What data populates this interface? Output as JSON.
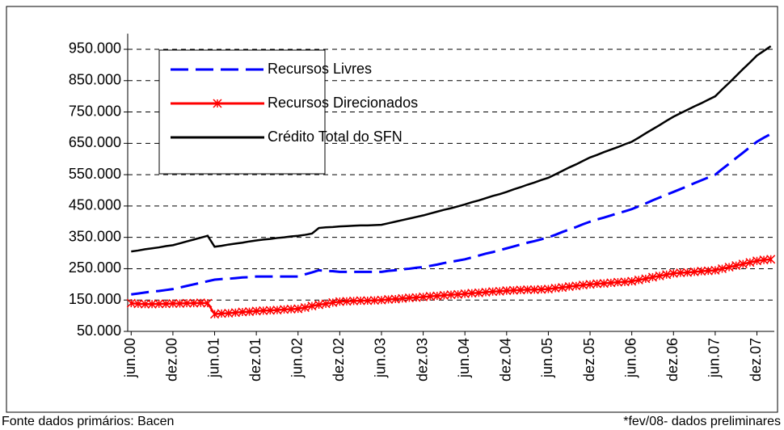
{
  "chart_data": {
    "type": "line",
    "categories": [
      "jun.00",
      null,
      null,
      null,
      null,
      null,
      "dez.00",
      null,
      null,
      null,
      null,
      null,
      "jun.01",
      null,
      null,
      null,
      null,
      null,
      "dez.01",
      null,
      null,
      null,
      null,
      null,
      "jun.02",
      null,
      null,
      null,
      null,
      null,
      "dez.02",
      null,
      null,
      null,
      null,
      null,
      "jun.03",
      null,
      null,
      null,
      null,
      null,
      "dez.03",
      null,
      null,
      null,
      null,
      null,
      "jun.04",
      null,
      null,
      null,
      null,
      null,
      "dez.04",
      null,
      null,
      null,
      null,
      null,
      "jun.05",
      null,
      null,
      null,
      null,
      null,
      "dez.05",
      null,
      null,
      null,
      null,
      null,
      "jun.06",
      null,
      null,
      null,
      null,
      null,
      "dez.06",
      null,
      null,
      null,
      null,
      null,
      "jun.07",
      null,
      null,
      null,
      null,
      null,
      "dez.07",
      null,
      null
    ],
    "series": [
      {
        "name": "Recursos Livres",
        "color": "#0000ff",
        "style": "dashed",
        "values": [
          168000,
          171000,
          174000,
          177000,
          179000,
          182000,
          185000,
          190000,
          195000,
          200000,
          205000,
          210000,
          215000,
          217000,
          218000,
          220000,
          222000,
          223000,
          225000,
          225000,
          225000,
          225000,
          225000,
          225000,
          225000,
          232000,
          238000,
          245000,
          243000,
          242000,
          240000,
          240000,
          240000,
          240000,
          240000,
          240000,
          240000,
          243000,
          245000,
          248000,
          250000,
          253000,
          255000,
          259000,
          263000,
          268000,
          272000,
          276000,
          280000,
          286000,
          292000,
          298000,
          303000,
          309000,
          315000,
          321000,
          327000,
          333000,
          338000,
          344000,
          350000,
          358000,
          367000,
          375000,
          383000,
          392000,
          400000,
          407000,
          413000,
          420000,
          427000,
          433000,
          440000,
          449000,
          458000,
          468000,
          477000,
          486000,
          495000,
          504000,
          513000,
          523000,
          532000,
          541000,
          550000,
          568000,
          585000,
          603000,
          620000,
          638000,
          655000,
          668000,
          680000
        ]
      },
      {
        "name": "Recursos Direcionados",
        "color": "#ff0000",
        "style": "solid",
        "marker": "asterisk",
        "values": [
          140000,
          138000,
          137000,
          137000,
          138000,
          138000,
          139000,
          139000,
          140000,
          140000,
          141000,
          140000,
          105000,
          107000,
          108000,
          110000,
          112000,
          113000,
          115000,
          116000,
          117000,
          118000,
          120000,
          121000,
          122000,
          126000,
          131000,
          135000,
          138000,
          142000,
          145000,
          146000,
          147000,
          148000,
          148000,
          149000,
          150000,
          152000,
          153000,
          155000,
          157000,
          158000,
          160000,
          162000,
          163000,
          165000,
          167000,
          168000,
          170000,
          172000,
          173000,
          175000,
          177000,
          178000,
          180000,
          181000,
          182000,
          183000,
          183000,
          184000,
          185000,
          188000,
          190000,
          193000,
          195000,
          198000,
          200000,
          202000,
          203000,
          205000,
          207000,
          208000,
          210000,
          214000,
          218000,
          223000,
          227000,
          231000,
          235000,
          237000,
          238000,
          240000,
          242000,
          243000,
          245000,
          250000,
          255000,
          260000,
          265000,
          270000,
          275000,
          278000,
          280000
        ]
      },
      {
        "name": "Crédito Total do SFN",
        "color": "#000000",
        "style": "solid",
        "values": [
          305000,
          308000,
          312000,
          315000,
          318000,
          322000,
          325000,
          331000,
          337000,
          343000,
          349000,
          355000,
          320000,
          323000,
          327000,
          330000,
          333000,
          337000,
          340000,
          343000,
          345000,
          348000,
          350000,
          353000,
          355000,
          358000,
          362000,
          380000,
          382000,
          383000,
          385000,
          386000,
          387000,
          388000,
          388000,
          389000,
          390000,
          395000,
          400000,
          405000,
          410000,
          415000,
          420000,
          426000,
          432000,
          438000,
          443000,
          449000,
          455000,
          462000,
          468000,
          475000,
          482000,
          488000,
          495000,
          503000,
          510000,
          518000,
          525000,
          533000,
          540000,
          551000,
          562000,
          573000,
          583000,
          594000,
          605000,
          613000,
          622000,
          630000,
          638000,
          647000,
          655000,
          668000,
          682000,
          695000,
          708000,
          722000,
          735000,
          746000,
          757000,
          768000,
          778000,
          789000,
          800000,
          822000,
          843000,
          865000,
          887000,
          908000,
          930000,
          945000,
          960000
        ]
      }
    ],
    "ylim": [
      50000,
      1000000
    ],
    "yticks": [
      {
        "value": 50000,
        "label": "50.000"
      },
      {
        "value": 150000,
        "label": "150.000"
      },
      {
        "value": 250000,
        "label": "250.000"
      },
      {
        "value": 350000,
        "label": "350.000"
      },
      {
        "value": 450000,
        "label": "450.000"
      },
      {
        "value": 550000,
        "label": "550.000"
      },
      {
        "value": 650000,
        "label": "650.000"
      },
      {
        "value": 750000,
        "label": "750.000"
      },
      {
        "value": 850000,
        "label": "850.000"
      },
      {
        "value": 950000,
        "label": "950.000"
      }
    ],
    "grid": true,
    "legend": "upper left",
    "annotations": [
      "Fonte dados primários: Bacen",
      "*fev/08- dados preliminares"
    ]
  }
}
